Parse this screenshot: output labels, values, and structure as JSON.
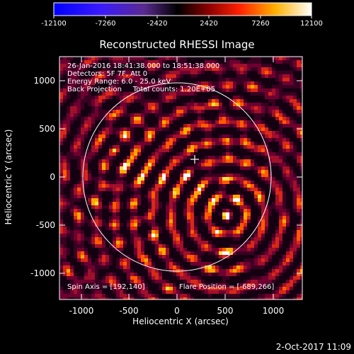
{
  "colorbar": {
    "ticks": [
      "-12100",
      "-7260",
      "-2420",
      "2420",
      "7260",
      "12100"
    ]
  },
  "title": "Reconstructed RHESSI Image",
  "info_lines": [
    "26-Jan-2016 18:41:38.000 to 18:51:38.000",
    "Detectors: 5F 7F, Att 0",
    "Energy Range: 6.0 - 25.0 keV",
    "Back Projection     Total counts: 1.20E+05"
  ],
  "bottom_left_note": "Spin Axis = [192,140]",
  "bottom_right_note": "Flare Position = [-689,266]",
  "x_axis": {
    "label": "Heliocentric X (arcsec)",
    "ticks": [
      "-1000",
      "-500",
      "0",
      "500",
      "1000"
    ]
  },
  "y_axis": {
    "label": "Heliocentric Y (arcsec)",
    "ticks": [
      "1000",
      "500",
      "0",
      "-500",
      "-1000"
    ]
  },
  "footer_timestamp": "2-Oct-2017 11:09",
  "colors": {
    "background": "#000000",
    "axes": "#ffffff",
    "colormap": [
      "#0000ff",
      "#000000",
      "#ff0000",
      "#ffff00",
      "#ffffff"
    ]
  }
}
